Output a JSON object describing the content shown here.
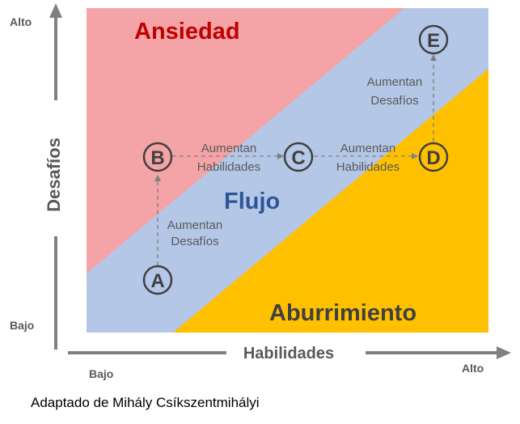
{
  "axes": {
    "y_label": "Desafíos",
    "y_high": "Alto",
    "y_low": "Bajo",
    "x_label": "Habilidades",
    "x_low": "Bajo",
    "x_high": "Alto"
  },
  "zones": {
    "anxiety": {
      "label": "Ansiedad",
      "color": "#f4a3a6",
      "text_color": "#c00000"
    },
    "flow": {
      "label": "Flujo",
      "color": "#b4c7e7",
      "text_color": "#2f5597"
    },
    "boredom": {
      "label": "Aburrimiento",
      "color": "#ffc000",
      "text_color": "#404040"
    }
  },
  "nodes": [
    "A",
    "B",
    "C",
    "D",
    "E"
  ],
  "steps": {
    "a_to_b": [
      "Aumentan",
      "Desafíos"
    ],
    "b_to_c": [
      "Aumentan",
      "Habilidades"
    ],
    "c_to_d": [
      "Aumentan",
      "Habilidades"
    ],
    "d_to_e": [
      "Aumentan",
      "Desafíos"
    ]
  },
  "caption": "Adaptado de Mihály  Csíkszentmihályi"
}
